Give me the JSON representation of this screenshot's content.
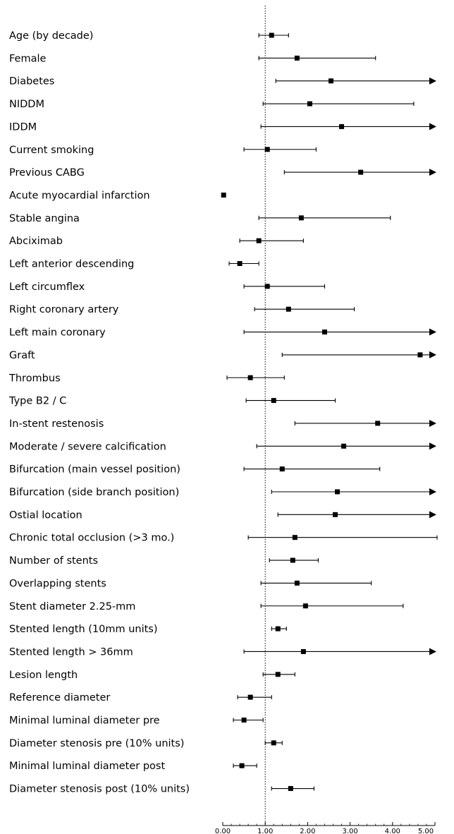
{
  "chart_data": {
    "type": "forest",
    "title": "",
    "xlabel": "",
    "ylabel": "",
    "xlim": [
      0,
      5
    ],
    "xticks": [
      "0.00",
      "1.00",
      "2.00",
      "3.00",
      "4.00",
      "5.00"
    ],
    "reference_line": 1,
    "grid": false,
    "arrow_means_upper_beyond_axis": true,
    "rows": [
      {
        "label": "Age (by decade)",
        "estimate": 1.15,
        "lower": 0.85,
        "upper": 1.55
      },
      {
        "label": "Female",
        "estimate": 1.75,
        "lower": 0.85,
        "upper": 3.6
      },
      {
        "label": "Diabetes",
        "estimate": 2.55,
        "lower": 1.25,
        "upper": 5.0,
        "arrow": true
      },
      {
        "label": "NIDDM",
        "estimate": 2.05,
        "lower": 0.95,
        "upper": 4.5
      },
      {
        "label": "IDDM",
        "estimate": 2.8,
        "lower": 0.9,
        "upper": 5.0,
        "arrow": true
      },
      {
        "label": "Current smoking",
        "estimate": 1.05,
        "lower": 0.5,
        "upper": 2.2
      },
      {
        "label": "Previous CABG",
        "estimate": 3.25,
        "lower": 1.45,
        "upper": 5.0,
        "arrow": true
      },
      {
        "label": "Acute myocardial infarction",
        "estimate": 0.02,
        "lower": null,
        "upper": null
      },
      {
        "label": "Stable angina",
        "estimate": 1.85,
        "lower": 0.85,
        "upper": 3.95
      },
      {
        "label": "Abciximab",
        "estimate": 0.85,
        "lower": 0.4,
        "upper": 1.9
      },
      {
        "label": "Left anterior descending",
        "estimate": 0.4,
        "lower": 0.15,
        "upper": 0.85
      },
      {
        "label": "Left circumflex",
        "estimate": 1.05,
        "lower": 0.5,
        "upper": 2.4
      },
      {
        "label": "Right coronary artery",
        "estimate": 1.55,
        "lower": 0.75,
        "upper": 3.1
      },
      {
        "label": "Left main coronary",
        "estimate": 2.4,
        "lower": 0.5,
        "upper": 5.0,
        "arrow": true
      },
      {
        "label": "Graft",
        "estimate": 4.65,
        "lower": 1.4,
        "upper": 5.0,
        "arrow": true
      },
      {
        "label": "Thrombus",
        "estimate": 0.65,
        "lower": 0.1,
        "upper": 1.45
      },
      {
        "label": "Type B2 / C",
        "estimate": 1.2,
        "lower": 0.55,
        "upper": 2.65
      },
      {
        "label": "In-stent restenosis",
        "estimate": 3.65,
        "lower": 1.7,
        "upper": 5.0,
        "arrow": true
      },
      {
        "label": "Moderate / severe calcification",
        "estimate": 2.85,
        "lower": 0.8,
        "upper": 5.0,
        "arrow": true
      },
      {
        "label": "Bifurcation (main vessel position)",
        "estimate": 1.4,
        "lower": 0.5,
        "upper": 3.7
      },
      {
        "label": "Bifurcation (side branch position)",
        "estimate": 2.7,
        "lower": 1.15,
        "upper": 5.0,
        "arrow": true
      },
      {
        "label": "Ostial location",
        "estimate": 2.65,
        "lower": 1.3,
        "upper": 5.0,
        "arrow": true
      },
      {
        "label": "Chronic total occlusion (>3 mo.)",
        "estimate": 1.7,
        "lower": 0.6,
        "upper": 5.05
      },
      {
        "label": "Number of stents",
        "estimate": 1.65,
        "lower": 1.1,
        "upper": 2.25
      },
      {
        "label": "Overlapping stents",
        "estimate": 1.75,
        "lower": 0.9,
        "upper": 3.5
      },
      {
        "label": "Stent diameter 2.25-mm",
        "estimate": 1.95,
        "lower": 0.9,
        "upper": 4.25
      },
      {
        "label": "Stented length (10mm units)",
        "estimate": 1.3,
        "lower": 1.15,
        "upper": 1.5
      },
      {
        "label": "Stented length > 36mm",
        "estimate": 1.9,
        "lower": 0.5,
        "upper": 5.0,
        "arrow": true
      },
      {
        "label": "Lesion length",
        "estimate": 1.3,
        "lower": 0.95,
        "upper": 1.7
      },
      {
        "label": "Reference diameter",
        "estimate": 0.65,
        "lower": 0.35,
        "upper": 1.15
      },
      {
        "label": "Minimal luminal diameter pre",
        "estimate": 0.5,
        "lower": 0.25,
        "upper": 0.95
      },
      {
        "label": "Diameter stenosis pre (10% units)",
        "estimate": 1.2,
        "lower": 1.0,
        "upper": 1.4
      },
      {
        "label": "Minimal luminal diameter post",
        "estimate": 0.45,
        "lower": 0.25,
        "upper": 0.8
      },
      {
        "label": "Diameter stenosis post (10% units)",
        "estimate": 1.6,
        "lower": 1.15,
        "upper": 2.15
      }
    ]
  }
}
